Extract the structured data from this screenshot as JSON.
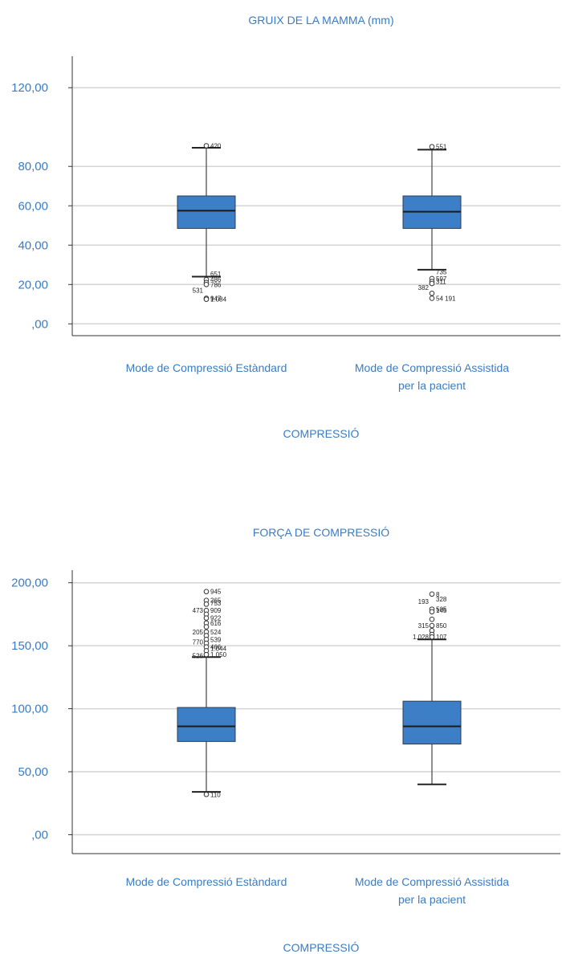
{
  "colors": {
    "box": "#3d7fc6",
    "box_edge": "#2d3e55",
    "text": "#3a7cc4",
    "grid": "#d4d4d4",
    "axis": "#333333",
    "median": "#1a1a1a"
  },
  "chart_data": [
    {
      "type": "boxplot",
      "title": "GRUIX DE LA MAMMA (mm)",
      "xlabel": "COMPRESSIÓ",
      "ylim": [
        -6,
        136
      ],
      "yticks": [
        0,
        20,
        40,
        60,
        80,
        120
      ],
      "ytick_labels": [
        ",00",
        "20,00",
        "40,00",
        "60,00",
        "80,00",
        "120,00"
      ],
      "categories": [
        "Mode de Compressió Estàndard",
        "Mode de Compressió Assistida|per la pacient"
      ],
      "boxes": [
        {
          "min": 24,
          "q1": 48.5,
          "median": 57.5,
          "q3": 65,
          "max": 89.5
        },
        {
          "min": 27.5,
          "q1": 48.5,
          "median": 57,
          "q3": 65,
          "max": 88.5
        }
      ],
      "outliers": [
        [
          {
            "y": 90.5,
            "label": "420"
          },
          {
            "y": 22.5,
            "label": "486"
          },
          {
            "y": 21,
            "label": ""
          },
          {
            "y": 20,
            "label": "786"
          },
          {
            "y": 13,
            "label": "947"
          },
          {
            "y": 12.5,
            "label": ""
          }
        ],
        [
          {
            "y": 90,
            "label": "551"
          },
          {
            "y": 23,
            "label": "597"
          },
          {
            "y": 21.5,
            "label": "311"
          },
          {
            "y": 20.5,
            "label": ""
          },
          {
            "y": 15.5,
            "label": ""
          },
          {
            "y": 13,
            "label": "54 191"
          }
        ]
      ],
      "extra_labels": [
        {
          "box": 0,
          "y": 25.5,
          "text": "651",
          "side": "right"
        },
        {
          "box": 0,
          "y": 17,
          "text": "531",
          "side": "left"
        },
        {
          "box": 0,
          "y": 12.5,
          "text": "1.084",
          "side": "right"
        },
        {
          "box": 1,
          "y": 26.5,
          "text": "735",
          "side": "right"
        },
        {
          "box": 1,
          "y": 18.5,
          "text": "382",
          "side": "left"
        }
      ]
    },
    {
      "type": "boxplot",
      "title": "FORÇA DE COMPRESSIÓ",
      "xlabel": "COMPRESSIÓ",
      "ylim": [
        -15,
        210
      ],
      "yticks": [
        0,
        50,
        100,
        150,
        200
      ],
      "ytick_labels": [
        ",00",
        "50,00",
        "100,00",
        "150,00",
        "200,00"
      ],
      "categories": [
        "Mode de Compressió Estàndard",
        "Mode de Compressió Assistida|per la pacient"
      ],
      "boxes": [
        {
          "min": 34,
          "q1": 74,
          "median": 86,
          "q3": 101,
          "max": 141
        },
        {
          "min": 40,
          "q1": 72,
          "median": 86,
          "q3": 106,
          "max": 155
        }
      ],
      "outliers": [
        [
          {
            "y": 193,
            "label": "945"
          },
          {
            "y": 186,
            "label": "265"
          },
          {
            "y": 183,
            "label": ""
          },
          {
            "y": 178,
            "label": "909"
          },
          {
            "y": 175,
            "label": ""
          },
          {
            "y": 172,
            "label": "922"
          },
          {
            "y": 168,
            "label": "616"
          },
          {
            "y": 165,
            "label": ""
          },
          {
            "y": 161,
            "label": "524"
          },
          {
            "y": 158,
            "label": ""
          },
          {
            "y": 155,
            "label": "539"
          },
          {
            "y": 152,
            "label": ""
          },
          {
            "y": 149,
            "label": "466"
          },
          {
            "y": 146,
            "label": ""
          },
          {
            "y": 143,
            "label": "1.050"
          },
          {
            "y": 32,
            "label": "110"
          }
        ],
        [
          {
            "y": 191,
            "label": "8"
          },
          {
            "y": 179,
            "label": "505"
          },
          {
            "y": 177,
            "label": ""
          },
          {
            "y": 171,
            "label": ""
          },
          {
            "y": 166,
            "label": "850"
          },
          {
            "y": 162,
            "label": ""
          },
          {
            "y": 159,
            "label": ""
          },
          {
            "y": 157,
            "label": "107"
          }
        ]
      ],
      "extra_labels": [
        {
          "box": 0,
          "y": 184,
          "text": "753",
          "side": "right"
        },
        {
          "box": 0,
          "y": 178,
          "text": "473",
          "side": "left"
        },
        {
          "box": 0,
          "y": 161,
          "text": "205",
          "side": "left"
        },
        {
          "box": 0,
          "y": 153,
          "text": "770",
          "side": "left"
        },
        {
          "box": 0,
          "y": 148,
          "text": "1.044",
          "side": "right"
        },
        {
          "box": 0,
          "y": 142,
          "text": "526",
          "side": "left"
        },
        {
          "box": 1,
          "y": 185,
          "text": "193",
          "side": "left"
        },
        {
          "box": 1,
          "y": 187,
          "text": "328",
          "side": "right"
        },
        {
          "box": 1,
          "y": 178,
          "text": "145",
          "side": "right"
        },
        {
          "box": 1,
          "y": 166,
          "text": "315",
          "side": "left"
        },
        {
          "box": 1,
          "y": 157,
          "text": "1.028",
          "side": "left"
        }
      ]
    }
  ]
}
